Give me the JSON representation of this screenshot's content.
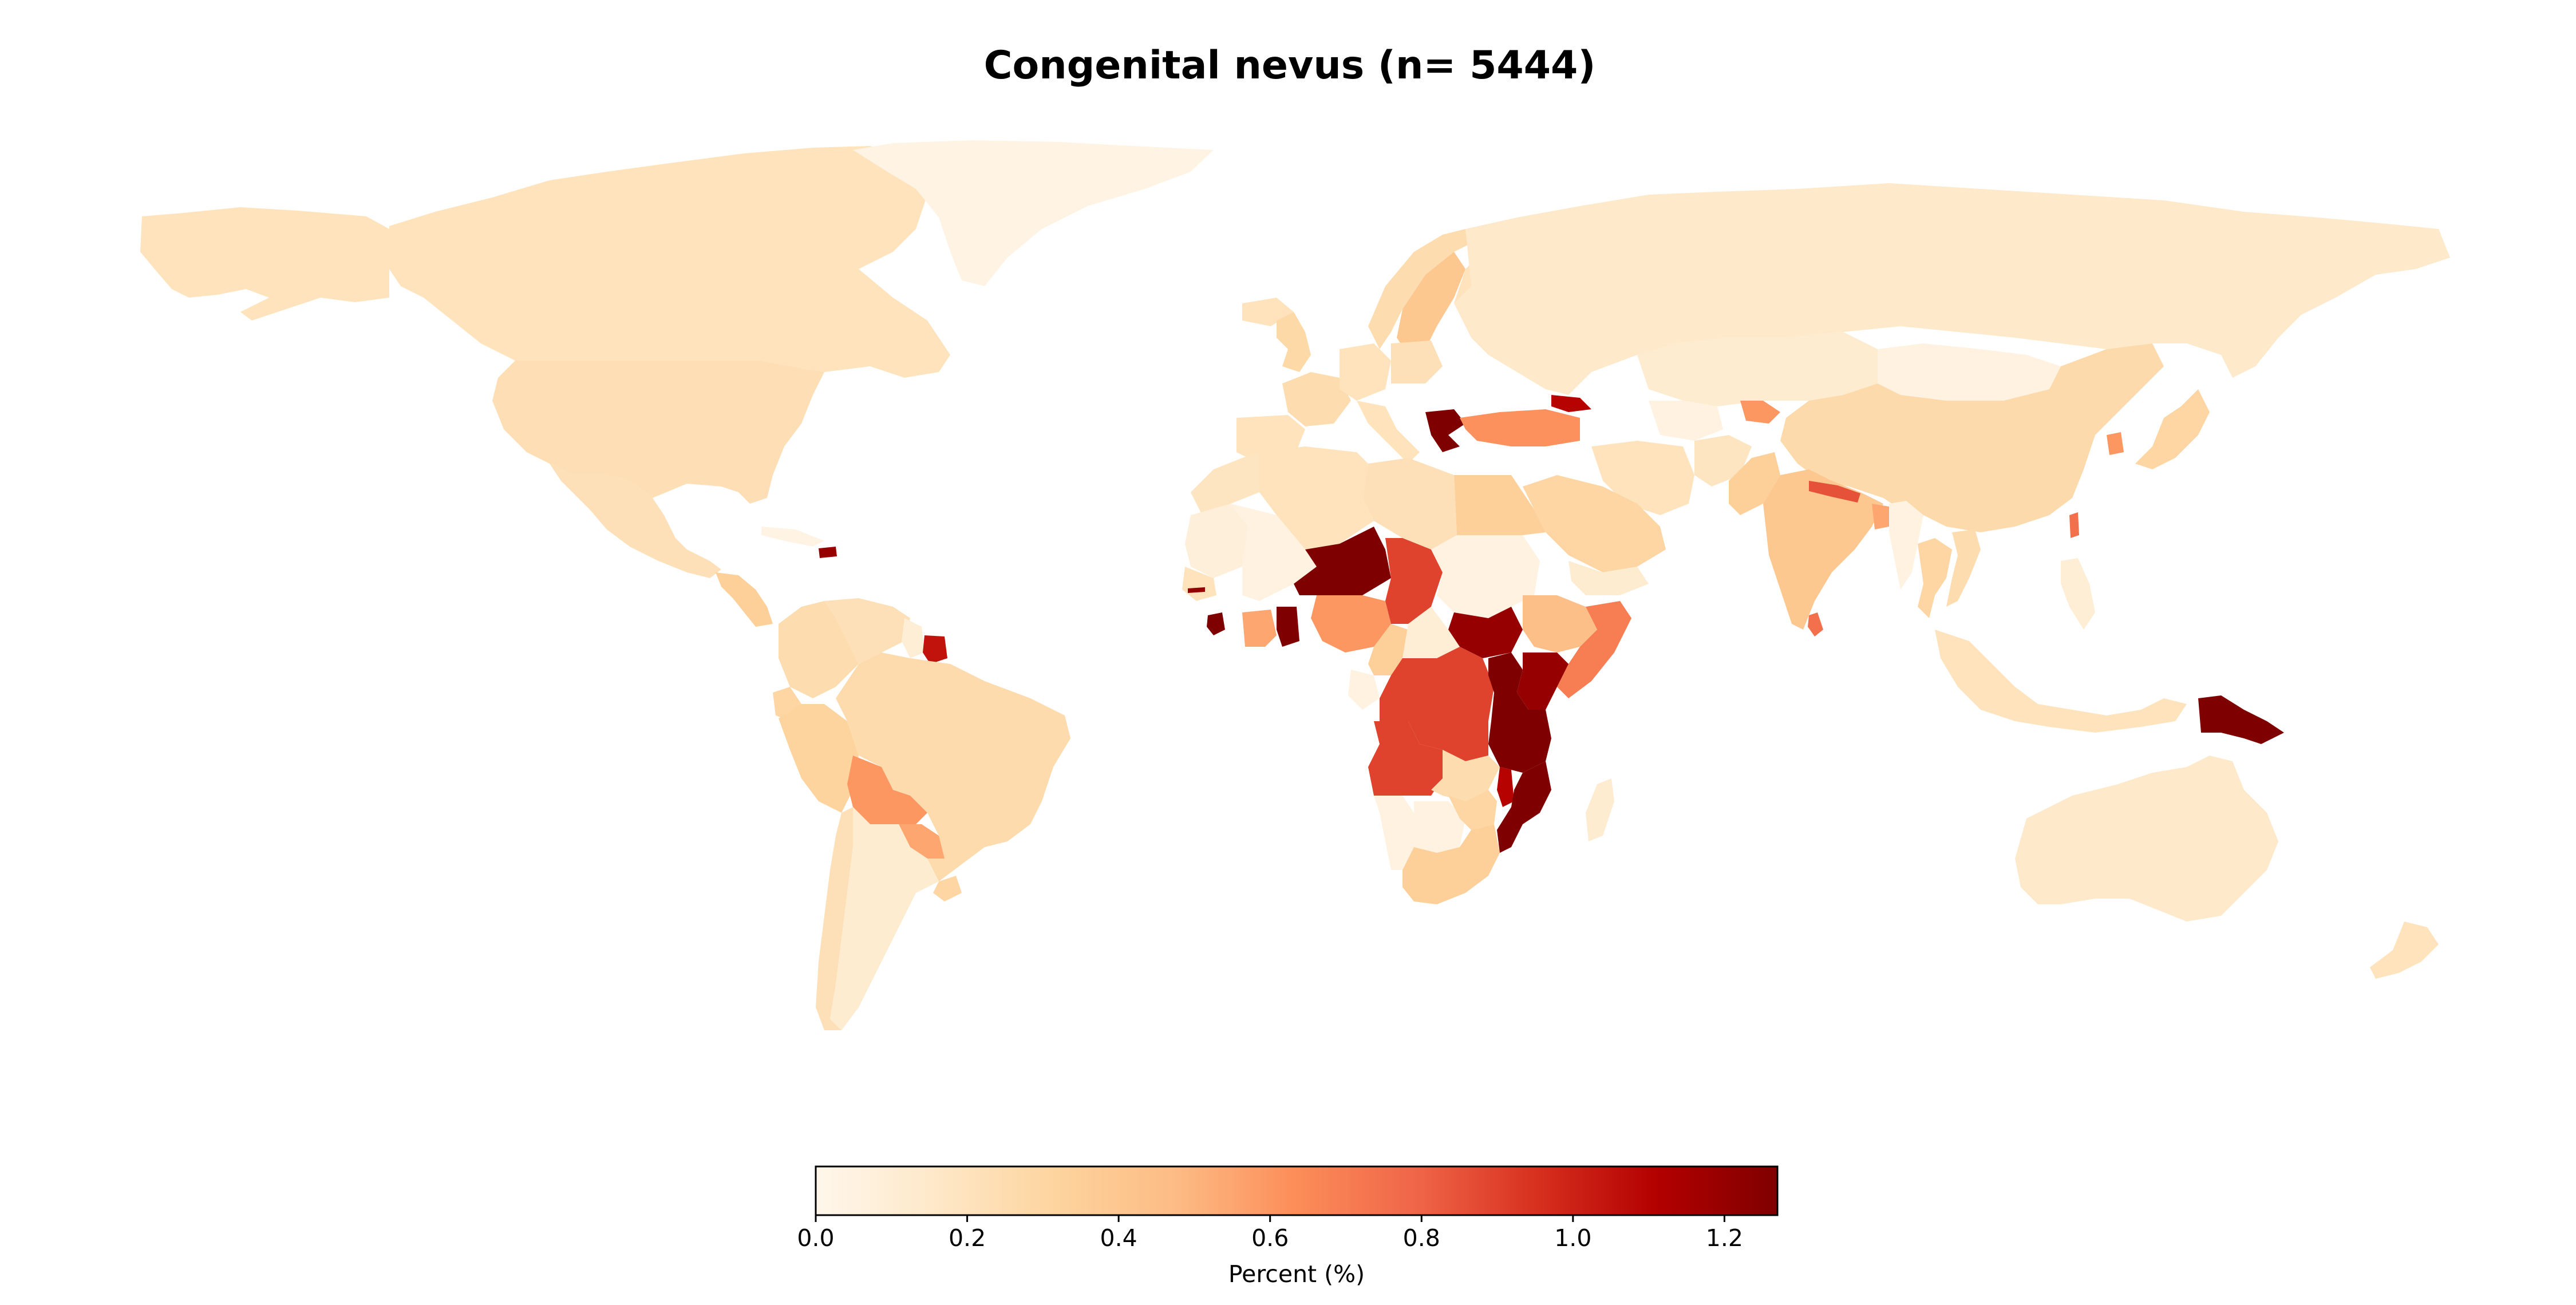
{
  "chart_data": {
    "type": "choropleth",
    "title": "Congenital nevus (n= 5444)",
    "colormap": "OrRd",
    "colormap_stops": [
      "#fff7ec",
      "#fee8c8",
      "#fdd49e",
      "#fdbb84",
      "#fc8d59",
      "#ef6548",
      "#d7301f",
      "#b30000",
      "#7f0000"
    ],
    "no_data_color": "#d3d3d3",
    "colorbar": {
      "label": "Percent (%)",
      "range": [
        0.0,
        1.27
      ],
      "ticks": [
        0.0,
        0.2,
        0.4,
        0.6,
        0.8,
        1.0,
        1.2
      ],
      "tick_labels": [
        "0.0",
        "0.2",
        "0.4",
        "0.6",
        "0.8",
        "1.0",
        "1.2"
      ]
    },
    "regions": [
      {
        "name": "Canada",
        "value": 0.2
      },
      {
        "name": "United States",
        "value": 0.23
      },
      {
        "name": "Alaska",
        "value": 0.2
      },
      {
        "name": "Greenland",
        "value": 0.04
      },
      {
        "name": "Mexico",
        "value": 0.22
      },
      {
        "name": "Central America",
        "value": 0.35
      },
      {
        "name": "Cuba",
        "value": 0.04
      },
      {
        "name": "Dominican Republic",
        "value": 1.2
      },
      {
        "name": "Colombia",
        "value": 0.25
      },
      {
        "name": "Venezuela",
        "value": 0.22
      },
      {
        "name": "Guyana",
        "value": 0.1
      },
      {
        "name": "Suriname",
        "value": 1.05
      },
      {
        "name": "Ecuador",
        "value": 0.3
      },
      {
        "name": "Peru",
        "value": 0.32
      },
      {
        "name": "Brazil",
        "value": 0.26
      },
      {
        "name": "Bolivia",
        "value": 0.6
      },
      {
        "name": "Paraguay",
        "value": 0.55
      },
      {
        "name": "Chile",
        "value": 0.22
      },
      {
        "name": "Argentina",
        "value": 0.12
      },
      {
        "name": "Uruguay",
        "value": 0.3
      },
      {
        "name": "Iceland",
        "value": 0.2
      },
      {
        "name": "Norway",
        "value": 0.25
      },
      {
        "name": "Sweden",
        "value": 0.4
      },
      {
        "name": "Finland",
        "value": 0.2
      },
      {
        "name": "United Kingdom",
        "value": 0.28
      },
      {
        "name": "France",
        "value": 0.25
      },
      {
        "name": "Spain",
        "value": 0.2
      },
      {
        "name": "Germany",
        "value": 0.2
      },
      {
        "name": "Poland",
        "value": 0.22
      },
      {
        "name": "Italy",
        "value": 0.2
      },
      {
        "name": "Greece",
        "value": 1.27
      },
      {
        "name": "Turkey",
        "value": 0.62
      },
      {
        "name": "Georgia",
        "value": 1.1
      },
      {
        "name": "Russia",
        "value": 0.15
      },
      {
        "name": "Kazakhstan",
        "value": 0.12
      },
      {
        "name": "Mongolia",
        "value": 0.05
      },
      {
        "name": "China",
        "value": 0.27
      },
      {
        "name": "Japan",
        "value": 0.3
      },
      {
        "name": "South Korea",
        "value": 0.6
      },
      {
        "name": "Iran",
        "value": 0.2
      },
      {
        "name": "Turkmenistan",
        "value": 0.05
      },
      {
        "name": "Afghanistan",
        "value": 0.18
      },
      {
        "name": "Pakistan",
        "value": 0.35
      },
      {
        "name": "Tajikistan",
        "value": 0.6
      },
      {
        "name": "India",
        "value": 0.4
      },
      {
        "name": "Nepal",
        "value": 0.85
      },
      {
        "name": "Bangladesh",
        "value": 0.55
      },
      {
        "name": "Sri Lanka",
        "value": 0.75
      },
      {
        "name": "Myanmar",
        "value": 0.05
      },
      {
        "name": "Thailand",
        "value": 0.3
      },
      {
        "name": "Vietnam",
        "value": 0.25
      },
      {
        "name": "Philippines",
        "value": 0.1
      },
      {
        "name": "Taiwan",
        "value": 0.75
      },
      {
        "name": "Indonesia",
        "value": 0.2
      },
      {
        "name": "Papua New Guinea",
        "value": 1.27
      },
      {
        "name": "Australia",
        "value": 0.15
      },
      {
        "name": "New Zealand",
        "value": 0.2
      },
      {
        "name": "Saudi Arabia",
        "value": 0.3
      },
      {
        "name": "Yemen",
        "value": 0.12
      },
      {
        "name": "Egypt",
        "value": 0.35
      },
      {
        "name": "Libya",
        "value": 0.22
      },
      {
        "name": "Algeria",
        "value": 0.2
      },
      {
        "name": "Morocco",
        "value": 0.18
      },
      {
        "name": "Mali",
        "value": 0.05
      },
      {
        "name": "Mauritania",
        "value": 0.08
      },
      {
        "name": "Senegal",
        "value": 0.2
      },
      {
        "name": "Gambia",
        "value": 1.2
      },
      {
        "name": "Sierra Leone",
        "value": 1.27
      },
      {
        "name": "Cote d'Ivoire",
        "value": 0.55
      },
      {
        "name": "Ghana",
        "value": 1.27
      },
      {
        "name": "Niger",
        "value": 1.27
      },
      {
        "name": "Nigeria",
        "value": 0.6
      },
      {
        "name": "Chad",
        "value": 0.9
      },
      {
        "name": "Sudan",
        "value": 0.05
      },
      {
        "name": "South Sudan",
        "value": 1.2
      },
      {
        "name": "Ethiopia",
        "value": 0.45
      },
      {
        "name": "Somalia",
        "value": 0.7
      },
      {
        "name": "Cameroon",
        "value": 0.35
      },
      {
        "name": "Central African Republic",
        "value": 0.1
      },
      {
        "name": "Gabon",
        "value": 0.05
      },
      {
        "name": "DR Congo",
        "value": 0.9
      },
      {
        "name": "Uganda",
        "value": 1.27
      },
      {
        "name": "Kenya",
        "value": 1.2
      },
      {
        "name": "Tanzania",
        "value": 1.27
      },
      {
        "name": "Angola",
        "value": 0.9
      },
      {
        "name": "Zambia",
        "value": 0.25
      },
      {
        "name": "Malawi",
        "value": 1.1
      },
      {
        "name": "Mozambique",
        "value": 1.27
      },
      {
        "name": "Namibia",
        "value": 0.05
      },
      {
        "name": "Botswana",
        "value": 0.05
      },
      {
        "name": "Zimbabwe",
        "value": 0.3
      },
      {
        "name": "South Africa",
        "value": 0.35
      },
      {
        "name": "Madagascar",
        "value": 0.12
      }
    ]
  }
}
